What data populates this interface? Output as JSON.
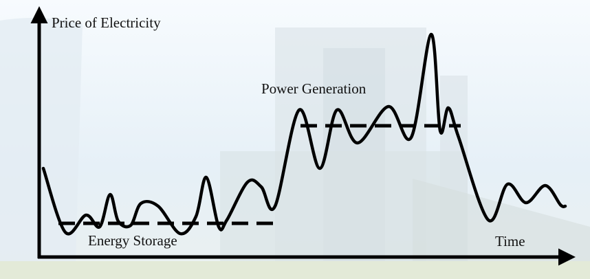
{
  "axes": {
    "y_label": "Price of Electricity",
    "x_label": "Time"
  },
  "annotations": {
    "high_price": "Power Generation",
    "low_price": "Energy Storage"
  }
}
